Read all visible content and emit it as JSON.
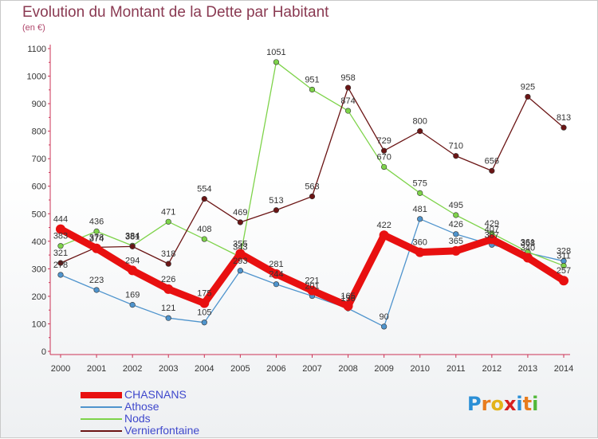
{
  "title": "Evolution du Montant de la Dette par Habitant",
  "subtitle": "(en €)",
  "logo": {
    "text": "Proxiti",
    "letters": [
      "P",
      "r",
      "o",
      "x",
      "i",
      "t",
      "i"
    ],
    "colors": [
      "#2b8fd6",
      "#e87c1e",
      "#e3b319",
      "#d62020",
      "#2b8fd6",
      "#e87c1e",
      "#52b83a"
    ]
  },
  "chart_data": {
    "type": "line",
    "title": "Evolution du Montant de la Dette par Habitant",
    "ylabel": "(en €)",
    "x": [
      "2000",
      "2001",
      "2002",
      "2003",
      "2004",
      "2005",
      "2006",
      "2007",
      "2008",
      "2009",
      "2010",
      "2011",
      "2012",
      "2013",
      "2014"
    ],
    "ylim": [
      0,
      1100
    ],
    "yticks": [
      0,
      100,
      200,
      300,
      400,
      500,
      600,
      700,
      800,
      900,
      1000,
      1100
    ],
    "grid": false,
    "legend_position": "bottom-left",
    "series": [
      {
        "name": "CHASNANS",
        "color": "#e81010",
        "values": [
          444,
          374,
          294,
          226,
          175,
          355,
          281,
          221,
          165,
          422,
          360,
          365,
          407,
          340,
          257
        ]
      },
      {
        "name": "Athose",
        "color": "#4f94cd",
        "values": [
          278,
          223,
          169,
          121,
          105,
          293,
          244,
          201,
          156,
          90,
          481,
          426,
          387,
          358,
          328
        ]
      },
      {
        "name": "Nods",
        "color": "#7ed34a",
        "values": [
          383,
          436,
          384,
          471,
          408,
          343,
          1051,
          951,
          874,
          670,
          575,
          495,
          429,
          361,
          311
        ]
      },
      {
        "name": "Vernierfontaine",
        "color": "#6b1515",
        "values": [
          321,
          378,
          381,
          318,
          554,
          469,
          513,
          563,
          958,
          729,
          800,
          710,
          656,
          925,
          813
        ]
      }
    ]
  }
}
